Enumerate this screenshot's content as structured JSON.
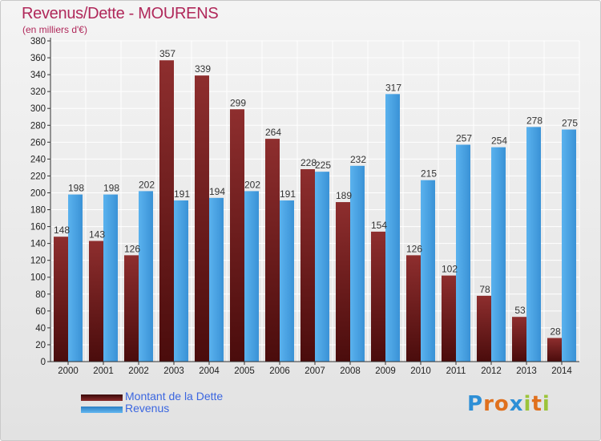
{
  "header": {
    "title": "Revenus/Dette - MOURENS",
    "subtitle": "(en milliers d'€)"
  },
  "colors": {
    "dette": "#7a1c1c",
    "revenus": "#4aa3e6",
    "title": "#b0285a",
    "legend_text": "#3b66e0"
  },
  "legend": {
    "items": [
      {
        "label": "Montant de la Dette",
        "color": "#7a1c1c"
      },
      {
        "label": "Revenus",
        "color": "#4aa3e6"
      }
    ]
  },
  "logo": {
    "text": "Proxiti",
    "letters": [
      {
        "char": "P",
        "color": "#2e8fd6"
      },
      {
        "char": "r",
        "color": "#e0701d"
      },
      {
        "char": "o",
        "color": "#e0701d"
      },
      {
        "char": "x",
        "color": "#2e8fd6"
      },
      {
        "char": "i",
        "color": "#9cc43a"
      },
      {
        "char": "t",
        "color": "#e0701d"
      },
      {
        "char": "i",
        "color": "#9cc43a"
      }
    ]
  },
  "chart_data": {
    "type": "bar",
    "title": "Revenus/Dette - MOURENS",
    "subtitle": "(en milliers d'€)",
    "xlabel": "",
    "ylabel": "",
    "categories": [
      "2000",
      "2001",
      "2002",
      "2003",
      "2004",
      "2005",
      "2006",
      "2007",
      "2008",
      "2009",
      "2010",
      "2011",
      "2012",
      "2013",
      "2014"
    ],
    "series": [
      {
        "name": "Montant de la Dette",
        "color": "#7a1c1c",
        "values": [
          148,
          143,
          126,
          357,
          339,
          299,
          264,
          228,
          189,
          154,
          126,
          102,
          78,
          53,
          28
        ]
      },
      {
        "name": "Revenus",
        "color": "#4aa3e6",
        "values": [
          198,
          198,
          202,
          191,
          194,
          202,
          191,
          225,
          232,
          317,
          215,
          257,
          254,
          278,
          275
        ]
      }
    ],
    "ylim": [
      0,
      380
    ],
    "ytick_step": 20,
    "grid": true,
    "legend_position": "bottom-left"
  }
}
